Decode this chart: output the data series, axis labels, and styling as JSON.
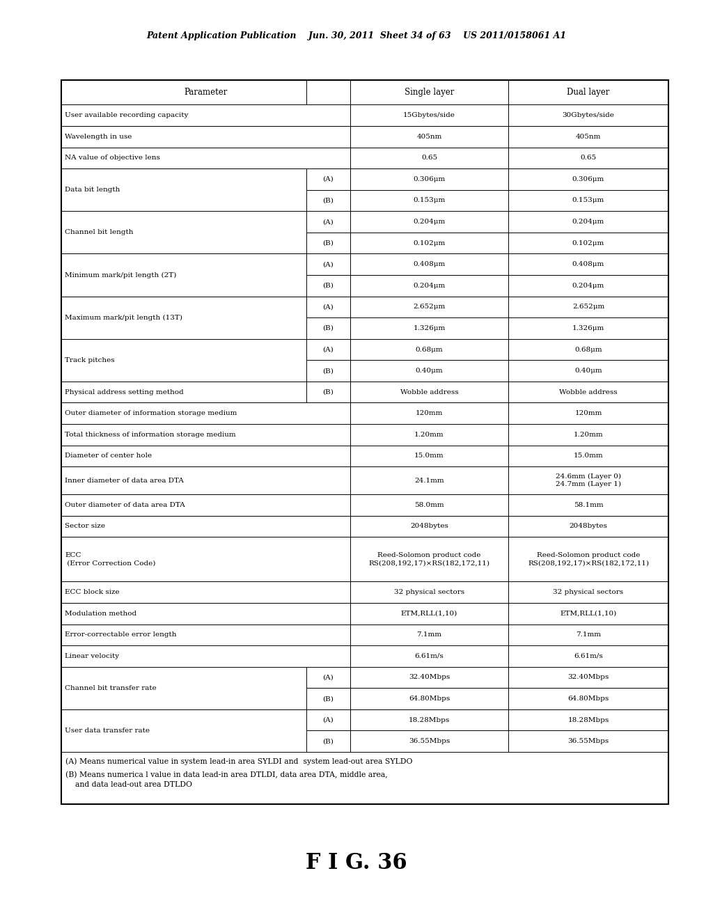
{
  "title_header_left": "Patent Application Publication",
  "title_header_mid": "Jun. 30, 2011  Sheet 34 of 63",
  "title_header_right": "US 2011/0158061 A1",
  "figure_label": "F I G. 36",
  "background_color": "#ffffff",
  "rows": [
    {
      "param": "Parameter",
      "sub": "",
      "single": "Single layer",
      "dual": "Dual layer",
      "is_header": true
    },
    {
      "param": "User available recording capacity",
      "sub": "",
      "single": "15Gbytes/side",
      "dual": "30Gbytes/side",
      "merge_param": false
    },
    {
      "param": "Wavelength in use",
      "sub": "",
      "single": "405nm",
      "dual": "405nm",
      "merge_param": false
    },
    {
      "param": "NA value of objective lens",
      "sub": "",
      "single": "0.65",
      "dual": "0.65",
      "merge_param": false
    },
    {
      "param": "Data bit length",
      "sub": "(A)",
      "single": "0.306μm",
      "dual": "0.306μm",
      "merge_param": true,
      "merge_start": true
    },
    {
      "param": "Data bit length",
      "sub": "(B)",
      "single": "0.153μm",
      "dual": "0.153μm",
      "merge_param": true,
      "merge_start": false
    },
    {
      "param": "Channel bit length",
      "sub": "(A)",
      "single": "0.204μm",
      "dual": "0.204μm",
      "merge_param": true,
      "merge_start": true
    },
    {
      "param": "Channel bit length",
      "sub": "(B)",
      "single": "0.102μm",
      "dual": "0.102μm",
      "merge_param": true,
      "merge_start": false
    },
    {
      "param": "Minimum mark/pit length (2T)",
      "sub": "(A)",
      "single": "0.408μm",
      "dual": "0.408μm",
      "merge_param": true,
      "merge_start": true
    },
    {
      "param": "Minimum mark/pit length (2T)",
      "sub": "(B)",
      "single": "0.204μm",
      "dual": "0.204μm",
      "merge_param": true,
      "merge_start": false
    },
    {
      "param": "Maximum mark/pit length (13T)",
      "sub": "(A)",
      "single": "2.652μm",
      "dual": "2.652μm",
      "merge_param": true,
      "merge_start": true
    },
    {
      "param": "Maximum mark/pit length (13T)",
      "sub": "(B)",
      "single": "1.326μm",
      "dual": "1.326μm",
      "merge_param": true,
      "merge_start": false
    },
    {
      "param": "Track pitches",
      "sub": "(A)",
      "single": "0.68μm",
      "dual": "0.68μm",
      "merge_param": true,
      "merge_start": true
    },
    {
      "param": "Track pitches",
      "sub": "(B)",
      "single": "0.40μm",
      "dual": "0.40μm",
      "merge_param": true,
      "merge_start": false
    },
    {
      "param": "Physical address setting method",
      "sub": "(B)",
      "single": "Wobble address",
      "dual": "Wobble address",
      "merge_param": false
    },
    {
      "param": "Outer diameter of information storage medium",
      "sub": "",
      "single": "120mm",
      "dual": "120mm",
      "merge_param": false
    },
    {
      "param": "Total thickness of information storage medium",
      "sub": "",
      "single": "1.20mm",
      "dual": "1.20mm",
      "merge_param": false
    },
    {
      "param": "Diameter of center hole",
      "sub": "",
      "single": "15.0mm",
      "dual": "15.0mm",
      "merge_param": false
    },
    {
      "param": "Inner diameter of data area DTA",
      "sub": "",
      "single": "24.1mm",
      "dual": "24.6mm (Layer 0)\n24.7mm (Layer 1)",
      "merge_param": false
    },
    {
      "param": "Outer diameter of data area DTA",
      "sub": "",
      "single": "58.0mm",
      "dual": "58.1mm",
      "merge_param": false
    },
    {
      "param": "Sector size",
      "sub": "",
      "single": "2048bytes",
      "dual": "2048bytes",
      "merge_param": false
    },
    {
      "param": "ECC\n (Error Correction Code)",
      "sub": "",
      "single": "Reed-Solomon product code\nRS(208,192,17)×RS(182,172,11)",
      "dual": "Reed-Solomon product code\nRS(208,192,17)×RS(182,172,11)",
      "merge_param": false,
      "tall": true
    },
    {
      "param": "ECC block size",
      "sub": "",
      "single": "32 physical sectors",
      "dual": "32 physical sectors",
      "merge_param": false
    },
    {
      "param": "Modulation method",
      "sub": "",
      "single": "ETM,RLL(1,10)",
      "dual": "ETM,RLL(1,10)",
      "merge_param": false
    },
    {
      "param": "Error-correctable error length",
      "sub": "",
      "single": "7.1mm",
      "dual": "7.1mm",
      "merge_param": false
    },
    {
      "param": "Linear velocity",
      "sub": "",
      "single": "6.61m/s",
      "dual": "6.61m/s",
      "merge_param": false
    },
    {
      "param": "Channel bit transfer rate",
      "sub": "(A)",
      "single": "32.40Mbps",
      "dual": "32.40Mbps",
      "merge_param": true,
      "merge_start": true
    },
    {
      "param": "Channel bit transfer rate",
      "sub": "(B)",
      "single": "64.80Mbps",
      "dual": "64.80Mbps",
      "merge_param": true,
      "merge_start": false
    },
    {
      "param": "User data transfer rate",
      "sub": "(A)",
      "single": "18.28Mbps",
      "dual": "18.28Mbps",
      "merge_param": true,
      "merge_start": true
    },
    {
      "param": "User data transfer rate",
      "sub": "(B)",
      "single": "36.55Mbps",
      "dual": "36.55Mbps",
      "merge_param": true,
      "merge_start": false
    }
  ],
  "footnotes": [
    "(A) Means numerical value in system lead-in area SYLDI and  system lead-out area SYLDO",
    "(B) Means numerica l value in data lead-in area DTLDI, data area DTA, middle area,\n    and data lead-out area DTLDO"
  ]
}
